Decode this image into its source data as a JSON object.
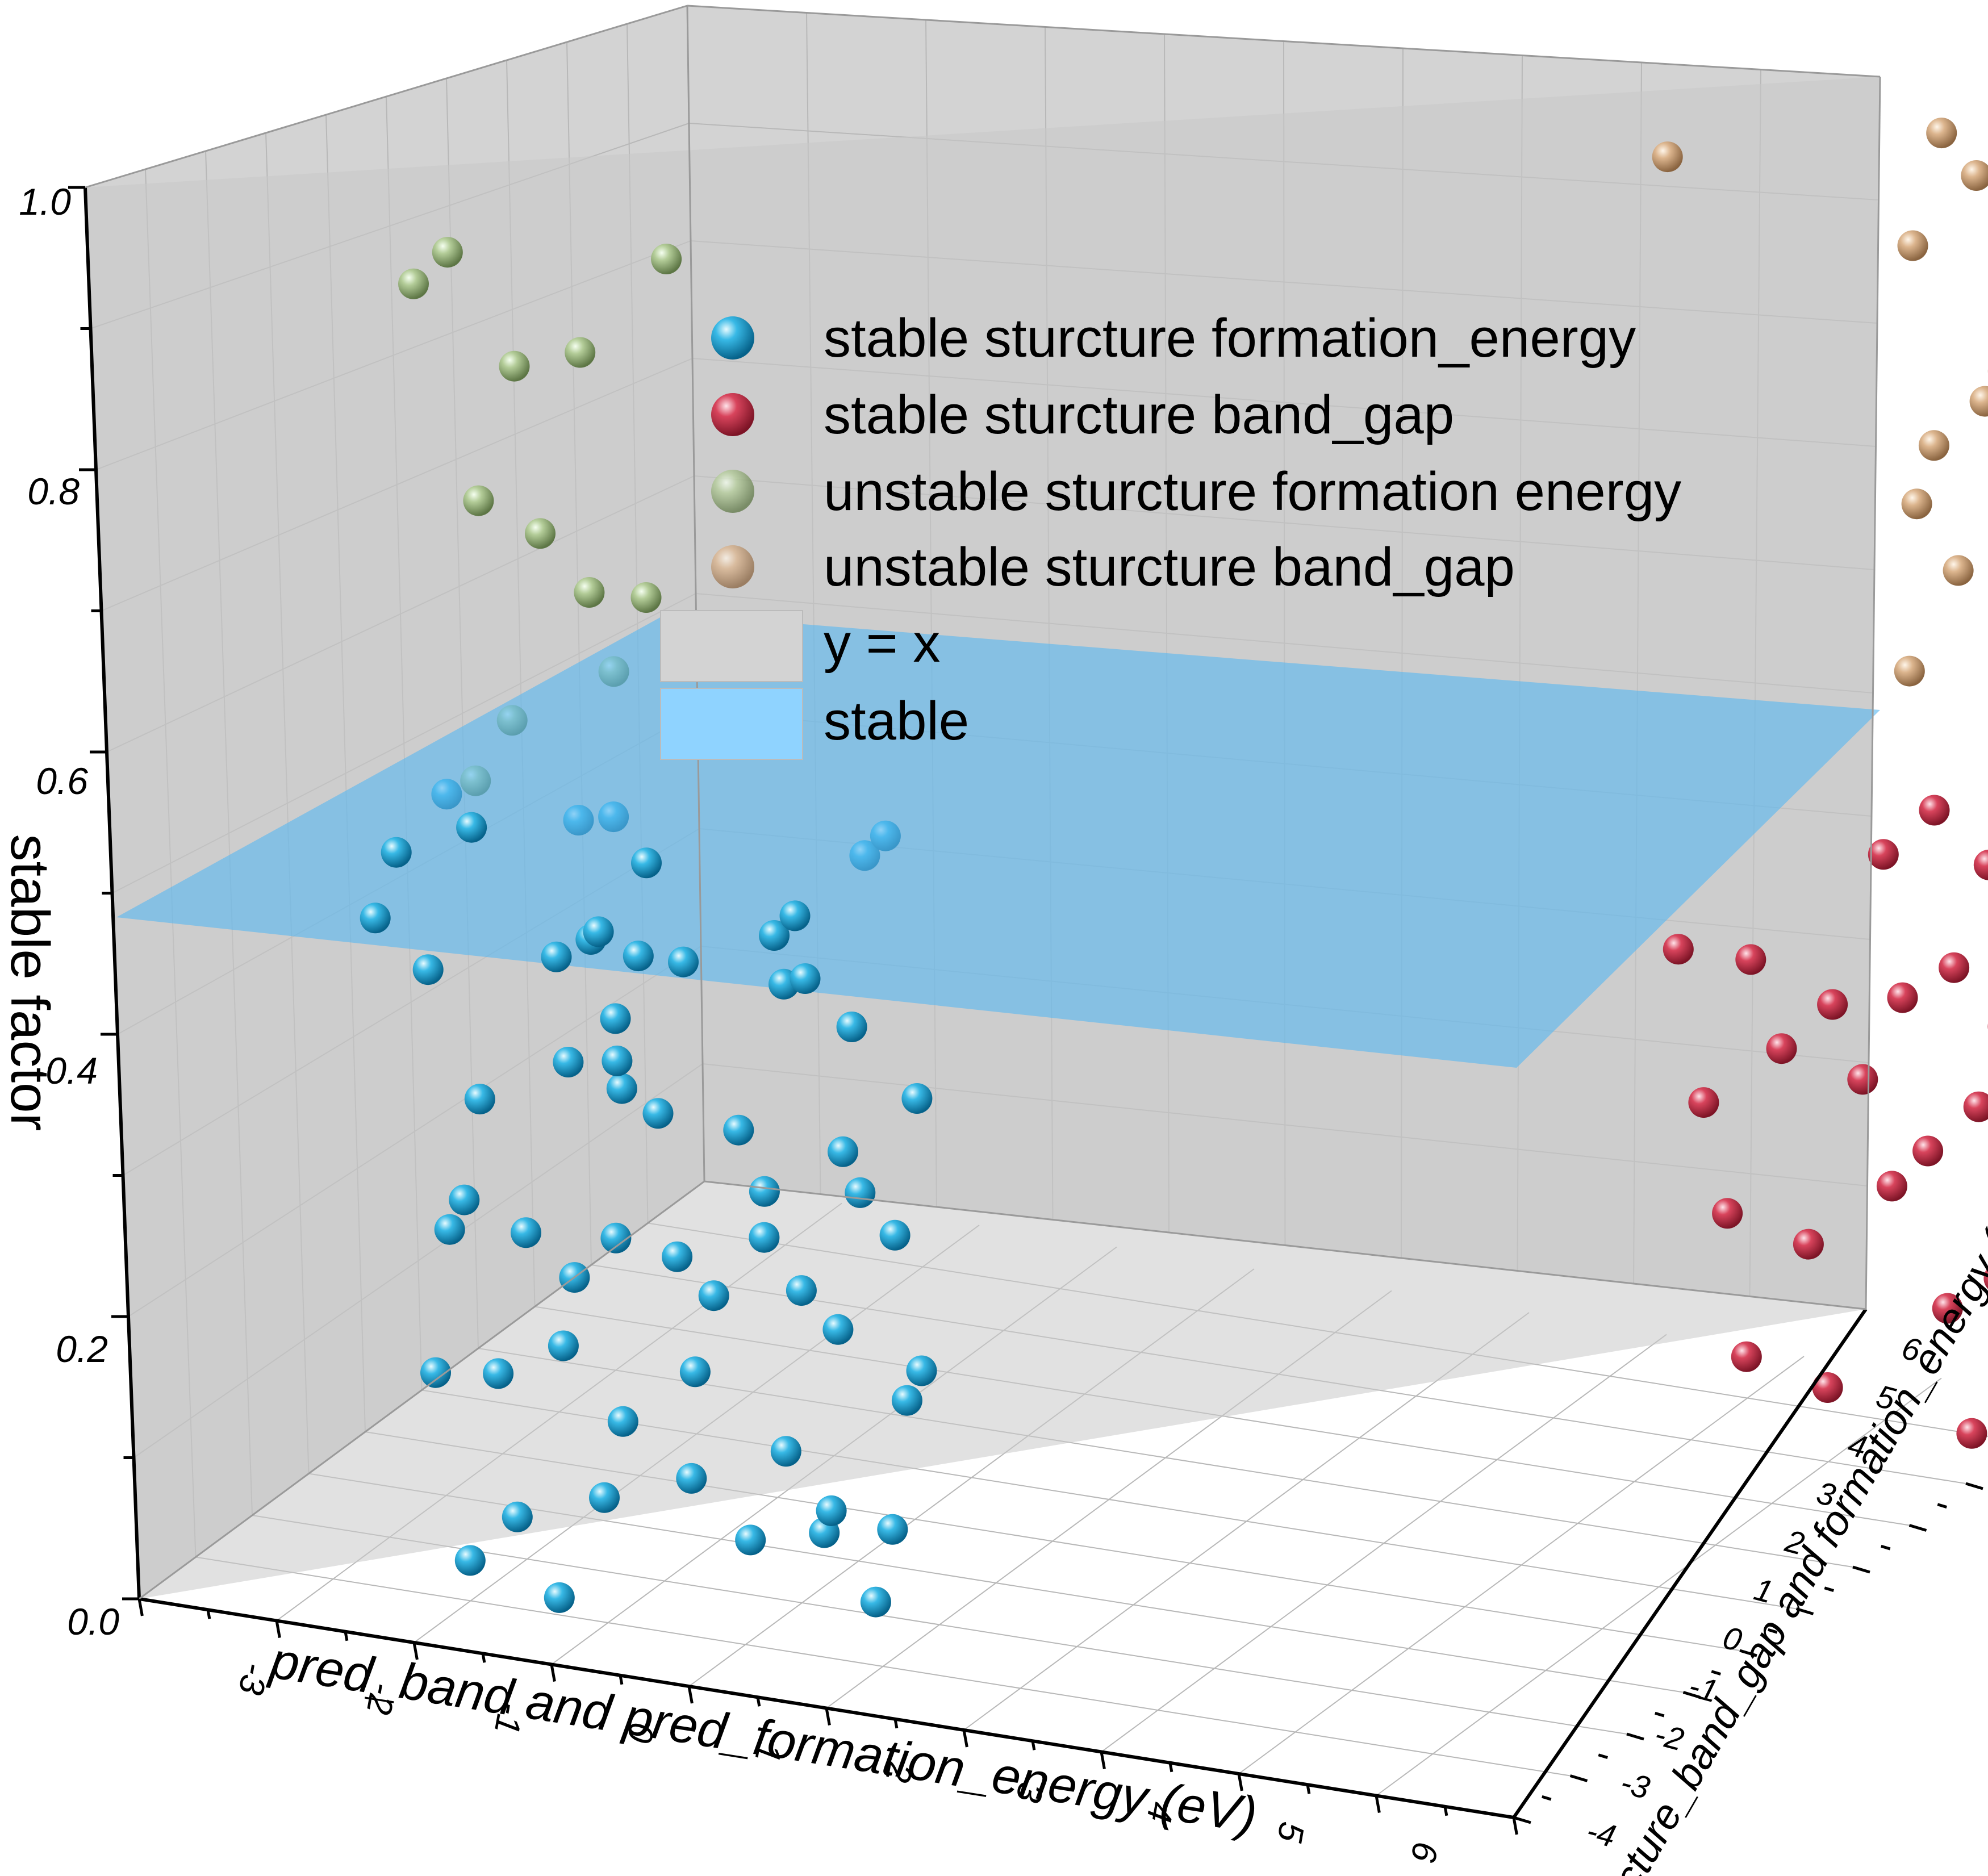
{
  "chart_data": {
    "type": "scatter3d",
    "zlabel": "stable factor",
    "xlabel": "pred_band and pred_formation_energy (eV)",
    "ylabel": "acture_band_gap and formation_energy (eV)",
    "zlim": [
      0,
      1.0
    ],
    "xlim": [
      -4,
      6
    ],
    "ylim": [
      -4,
      6
    ],
    "z_ticks": [
      "0.0",
      "0.2",
      "0.4",
      "0.6",
      "0.8",
      "1.0"
    ],
    "x_ticks": [
      "-3",
      "-2",
      "-1",
      "0",
      "1",
      "2",
      "3",
      "4",
      "5",
      "6"
    ],
    "y_ticks": [
      "-4",
      "-3",
      "-2",
      "-1",
      "0",
      "1",
      "2",
      "3",
      "4",
      "5",
      "6"
    ],
    "grid": true,
    "legend": {
      "position": "top-right",
      "entries": [
        {
          "label": "stable sturcture formation_energy",
          "kind": "sphere",
          "color": "#1aa3d9"
        },
        {
          "label": "stable sturcture band_gap",
          "kind": "sphere",
          "color": "#d23a52"
        },
        {
          "label": "unstable sturcture formation energy",
          "kind": "sphere",
          "color": "#a9d39a"
        },
        {
          "label": "unstable sturcture band_gap",
          "kind": "sphere",
          "color": "#e9b98a"
        },
        {
          "label": "y = x",
          "kind": "patch",
          "color": "#d3d3d3"
        },
        {
          "label": "stable",
          "kind": "patch",
          "color": "#8fd3ff"
        }
      ]
    },
    "surfaces": [
      {
        "name": "y = x",
        "color": "#d3d3d3"
      },
      {
        "name": "stable",
        "z": 0.5,
        "color": "#6ec2f2"
      }
    ],
    "series": [
      {
        "name": "stable sturcture formation_energy",
        "color": "#1aa3d9",
        "points": [
          [
            -3.1,
            -1.2,
            0.46
          ],
          [
            -2.8,
            -1.0,
            0.5
          ],
          [
            -2.5,
            -1.3,
            0.49
          ],
          [
            -1.8,
            -1.1,
            0.5
          ],
          [
            -1.5,
            -1.2,
            0.51
          ],
          [
            -1.4,
            -0.9,
            0.47
          ],
          [
            -1.6,
            -1.3,
            0.43
          ],
          [
            -0.4,
            -1.1,
            0.44
          ],
          [
            0.2,
            -0.9,
            0.5
          ],
          [
            0.4,
            -1.0,
            0.52
          ],
          [
            -0.2,
            -1.2,
            0.46
          ],
          [
            -3.4,
            -0.9,
            0.4
          ],
          [
            -2.9,
            -1.2,
            0.38
          ],
          [
            -2.0,
            -1.1,
            0.4
          ],
          [
            -1.7,
            -1.2,
            0.42
          ],
          [
            -1.4,
            -1.1,
            0.41
          ],
          [
            -1.2,
            -0.8,
            0.4
          ],
          [
            -1.5,
            -1.3,
            0.37
          ],
          [
            -0.3,
            -1.2,
            0.41
          ],
          [
            0.1,
            -1.0,
            0.38
          ],
          [
            0.6,
            -1.1,
            0.34
          ],
          [
            -0.1,
            -1.3,
            0.42
          ],
          [
            -2.6,
            -1.1,
            0.29
          ],
          [
            -1.9,
            -1.2,
            0.33
          ],
          [
            -1.6,
            -1.0,
            0.31
          ],
          [
            -1.3,
            -1.1,
            0.3
          ],
          [
            -1.5,
            -1.3,
            0.34
          ],
          [
            -0.8,
            -0.9,
            0.29
          ],
          [
            -0.5,
            -1.2,
            0.26
          ],
          [
            0.0,
            -1.0,
            0.29
          ],
          [
            0.2,
            -1.2,
            0.27
          ],
          [
            0.4,
            -1.1,
            0.24
          ],
          [
            -2.9,
            -1.0,
            0.19
          ],
          [
            -2.7,
            -1.2,
            0.22
          ],
          [
            -2.3,
            -1.1,
            0.2
          ],
          [
            -2.0,
            -1.0,
            0.17
          ],
          [
            -1.6,
            -1.2,
            0.21
          ],
          [
            -1.2,
            -1.1,
            0.2
          ],
          [
            -0.9,
            -1.2,
            0.18
          ],
          [
            -0.6,
            -1.0,
            0.22
          ],
          [
            -0.3,
            -1.1,
            0.19
          ],
          [
            0.0,
            -1.2,
            0.17
          ],
          [
            0.4,
            -1.0,
            0.12
          ],
          [
            0.6,
            -1.2,
            0.15
          ],
          [
            -3.0,
            -1.1,
            0.09
          ],
          [
            -2.5,
            -1.2,
            0.1
          ],
          [
            -2.1,
            -1.0,
            0.12
          ],
          [
            -1.6,
            -1.2,
            0.08
          ],
          [
            -1.1,
            -1.1,
            0.12
          ],
          [
            -0.5,
            -1.0,
            0.07
          ],
          [
            -0.1,
            -1.2,
            0.04
          ],
          [
            0.3,
            -1.1,
            0.03
          ],
          [
            -2.4,
            -1.2,
            0.0
          ],
          [
            -1.8,
            -1.1,
            0.02
          ],
          [
            -1.2,
            -1.0,
            0.04
          ],
          [
            -0.7,
            -1.2,
            0.01
          ],
          [
            -0.2,
            -1.1,
            0.02
          ],
          [
            0.2,
            -1.2,
            -0.02
          ],
          [
            -2.8,
            -1.1,
            -0.04
          ],
          [
            -2.2,
            -1.0,
            -0.06
          ]
        ]
      },
      {
        "name": "stable sturcture band_gap",
        "color": "#d23a52",
        "points": [
          [
            4.3,
            3.4,
            0.37
          ],
          [
            4.7,
            3.7,
            0.36
          ],
          [
            5.2,
            3.9,
            0.33
          ],
          [
            4.4,
            3.5,
            0.26
          ],
          [
            4.9,
            3.7,
            0.3
          ],
          [
            5.4,
            3.9,
            0.28
          ],
          [
            4.5,
            3.6,
            0.18
          ],
          [
            5.0,
            3.8,
            0.16
          ],
          [
            5.5,
            4.1,
            0.2
          ],
          [
            4.6,
            3.6,
            0.08
          ],
          [
            5.1,
            3.8,
            0.06
          ],
          [
            5.7,
            3.7,
            0.45
          ],
          [
            6.0,
            3.9,
            0.48
          ],
          [
            6.3,
            4.1,
            0.44
          ],
          [
            6.6,
            4.2,
            0.46
          ],
          [
            5.8,
            3.7,
            0.35
          ],
          [
            6.1,
            3.9,
            0.37
          ],
          [
            6.4,
            4.0,
            0.33
          ],
          [
            6.7,
            4.2,
            0.36
          ],
          [
            5.9,
            3.8,
            0.24
          ],
          [
            6.2,
            4.0,
            0.27
          ],
          [
            6.5,
            4.1,
            0.22
          ],
          [
            6.8,
            4.2,
            0.25
          ],
          [
            6.0,
            3.8,
            0.13
          ],
          [
            6.3,
            4.0,
            0.15
          ],
          [
            6.6,
            4.1,
            0.12
          ],
          [
            6.9,
            4.3,
            0.14
          ],
          [
            6.1,
            3.9,
            0.04
          ],
          [
            6.4,
            4.0,
            0.05
          ],
          [
            6.8,
            4.2,
            0.08
          ]
        ]
      },
      {
        "name": "unstable sturcture formation energy",
        "color": "#a9d39a",
        "points": [
          [
            -2.9,
            -1.0,
            0.86
          ],
          [
            -2.6,
            -1.1,
            0.89
          ],
          [
            -2.1,
            -1.2,
            0.82
          ],
          [
            -1.7,
            -1.0,
            0.83
          ],
          [
            -1.0,
            -1.1,
            0.91
          ],
          [
            -2.4,
            -1.2,
            0.72
          ],
          [
            -2.0,
            -1.1,
            0.7
          ],
          [
            -1.7,
            -1.0,
            0.66
          ],
          [
            -1.2,
            -1.2,
            0.67
          ],
          [
            -1.5,
            -1.1,
            0.61
          ],
          [
            -2.3,
            -1.0,
            0.56
          ],
          [
            -2.5,
            -1.2,
            0.52
          ]
        ]
      },
      {
        "name": "unstable sturcture band_gap",
        "color": "#e9b98a",
        "points": [
          [
            4.4,
            3.5,
            0.93
          ],
          [
            6.2,
            4.0,
            0.96
          ],
          [
            6.4,
            4.1,
            0.93
          ],
          [
            6.0,
            3.9,
            0.88
          ],
          [
            6.8,
            4.3,
            0.9
          ],
          [
            6.5,
            4.2,
            0.79
          ],
          [
            6.4,
            4.1,
            0.77
          ],
          [
            6.1,
            3.9,
            0.74
          ],
          [
            6.5,
            4.2,
            0.74
          ],
          [
            6.0,
            3.8,
            0.7
          ],
          [
            6.2,
            4.0,
            0.65
          ],
          [
            5.9,
            3.8,
            0.58
          ]
        ]
      }
    ]
  }
}
